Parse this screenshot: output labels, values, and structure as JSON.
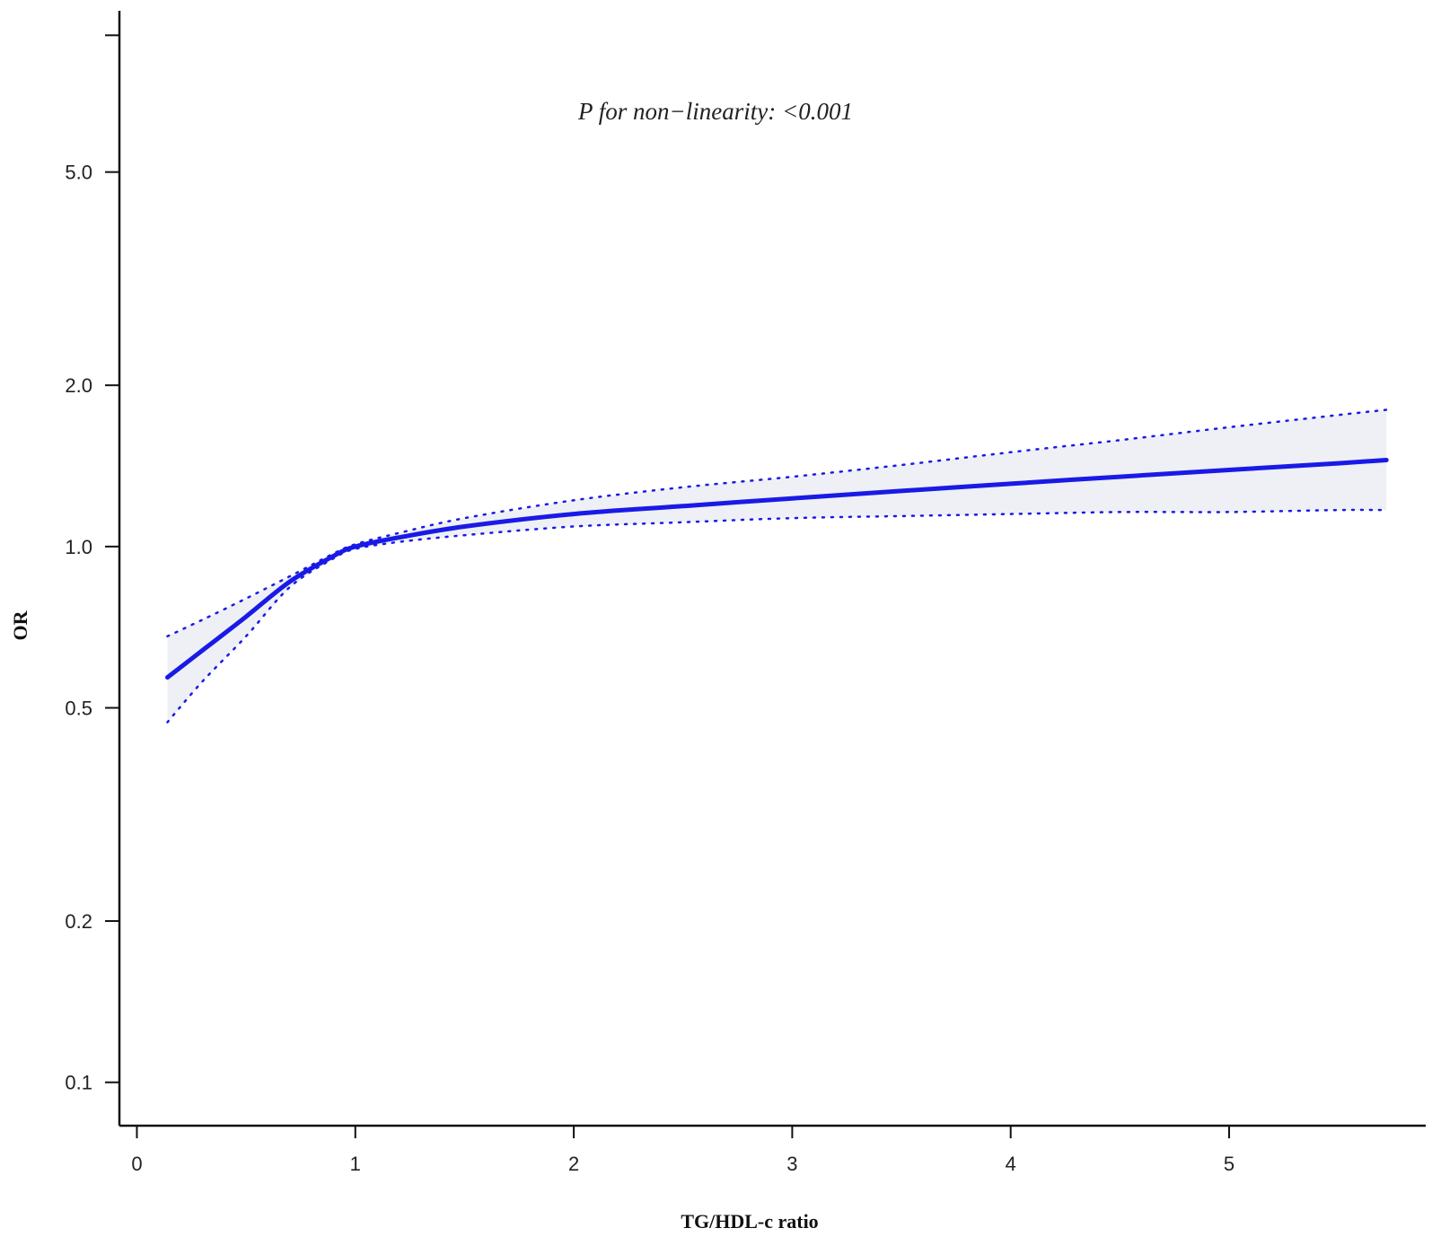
{
  "chart_data": {
    "type": "line",
    "xlabel": "TG/HDL-c ratio",
    "ylabel": "OR",
    "y_scale": "log",
    "xlim": [
      -0.08,
      5.9
    ],
    "ylim": [
      0.083,
      10.0
    ],
    "x_ticks": [
      0,
      1,
      2,
      3,
      4,
      5
    ],
    "x_tick_labels": [
      "0",
      "1",
      "2",
      "3",
      "4",
      "5"
    ],
    "y_ticks": [
      0.1,
      0.2,
      0.5,
      1.0,
      2.0,
      5.0,
      9.0
    ],
    "y_tick_labels": [
      "0.1",
      "0.2",
      "0.5",
      "1.0",
      "2.0",
      "5.0",
      ""
    ],
    "annotation": "P for non−linearity: <0.001",
    "grid": false,
    "legend": "none",
    "colors": {
      "line": "#1a1ae6",
      "band": "#eef0f5",
      "axis": "#111111"
    },
    "series": [
      {
        "x": [
          0.14,
          0.3,
          0.5,
          0.7,
          0.9,
          1.0,
          1.2,
          1.5,
          2.0,
          2.5,
          3.0,
          3.5,
          4.0,
          4.5,
          5.0,
          5.5,
          5.72
        ],
        "y": [
          0.57,
          0.64,
          0.74,
          0.86,
          0.96,
          1.0,
          1.04,
          1.09,
          1.15,
          1.19,
          1.23,
          1.27,
          1.31,
          1.35,
          1.39,
          1.43,
          1.45
        ]
      },
      {
        "x": [
          0.14,
          0.3,
          0.5,
          0.7,
          0.9,
          1.0,
          1.2,
          1.5,
          2.0,
          2.5,
          3.0,
          3.5,
          4.0,
          4.5,
          5.0,
          5.5,
          5.72
        ],
        "y": [
          0.68,
          0.73,
          0.8,
          0.88,
          0.97,
          1.01,
          1.06,
          1.13,
          1.22,
          1.29,
          1.35,
          1.42,
          1.5,
          1.58,
          1.67,
          1.76,
          1.8
        ]
      },
      {
        "x": [
          0.14,
          0.3,
          0.5,
          0.7,
          0.9,
          1.0,
          1.2,
          1.5,
          2.0,
          2.5,
          3.0,
          3.5,
          4.0,
          4.5,
          5.0,
          5.5,
          5.72
        ],
        "y": [
          0.47,
          0.56,
          0.68,
          0.84,
          0.95,
          0.99,
          1.02,
          1.05,
          1.09,
          1.11,
          1.13,
          1.14,
          1.15,
          1.16,
          1.16,
          1.17,
          1.17
        ]
      }
    ]
  }
}
